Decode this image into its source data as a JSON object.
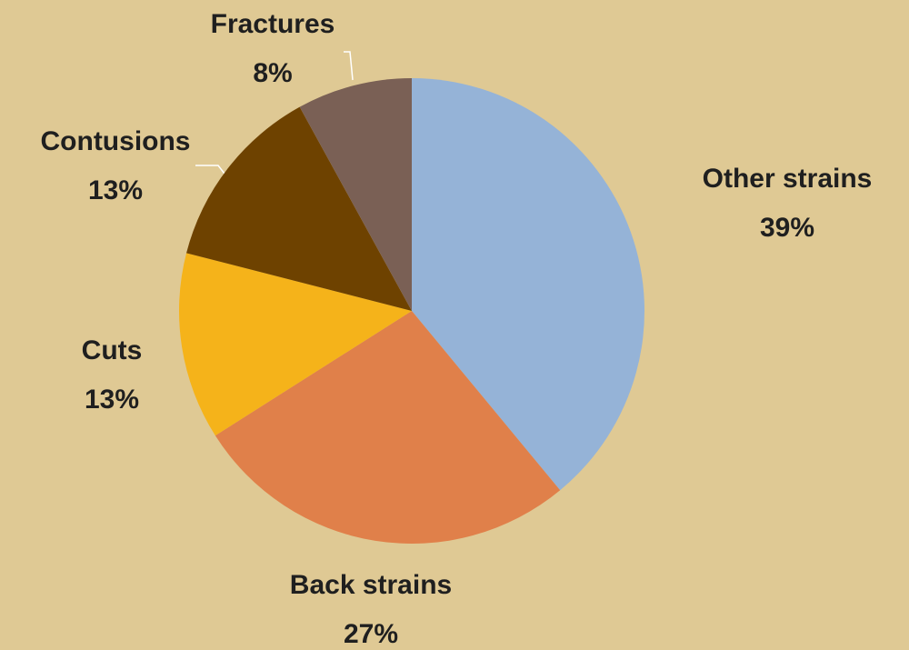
{
  "chart_data": {
    "type": "pie",
    "categories": [
      "Other strains",
      "Back strains",
      "Cuts",
      "Contusions",
      "Fractures"
    ],
    "values": [
      39,
      27,
      13,
      13,
      8
    ],
    "value_labels": [
      "39%",
      "27%",
      "13%",
      "13%",
      "8%"
    ],
    "colors": [
      "#95b3d7",
      "#e0804a",
      "#f5b31a",
      "#6e4200",
      "#7a6055"
    ]
  }
}
